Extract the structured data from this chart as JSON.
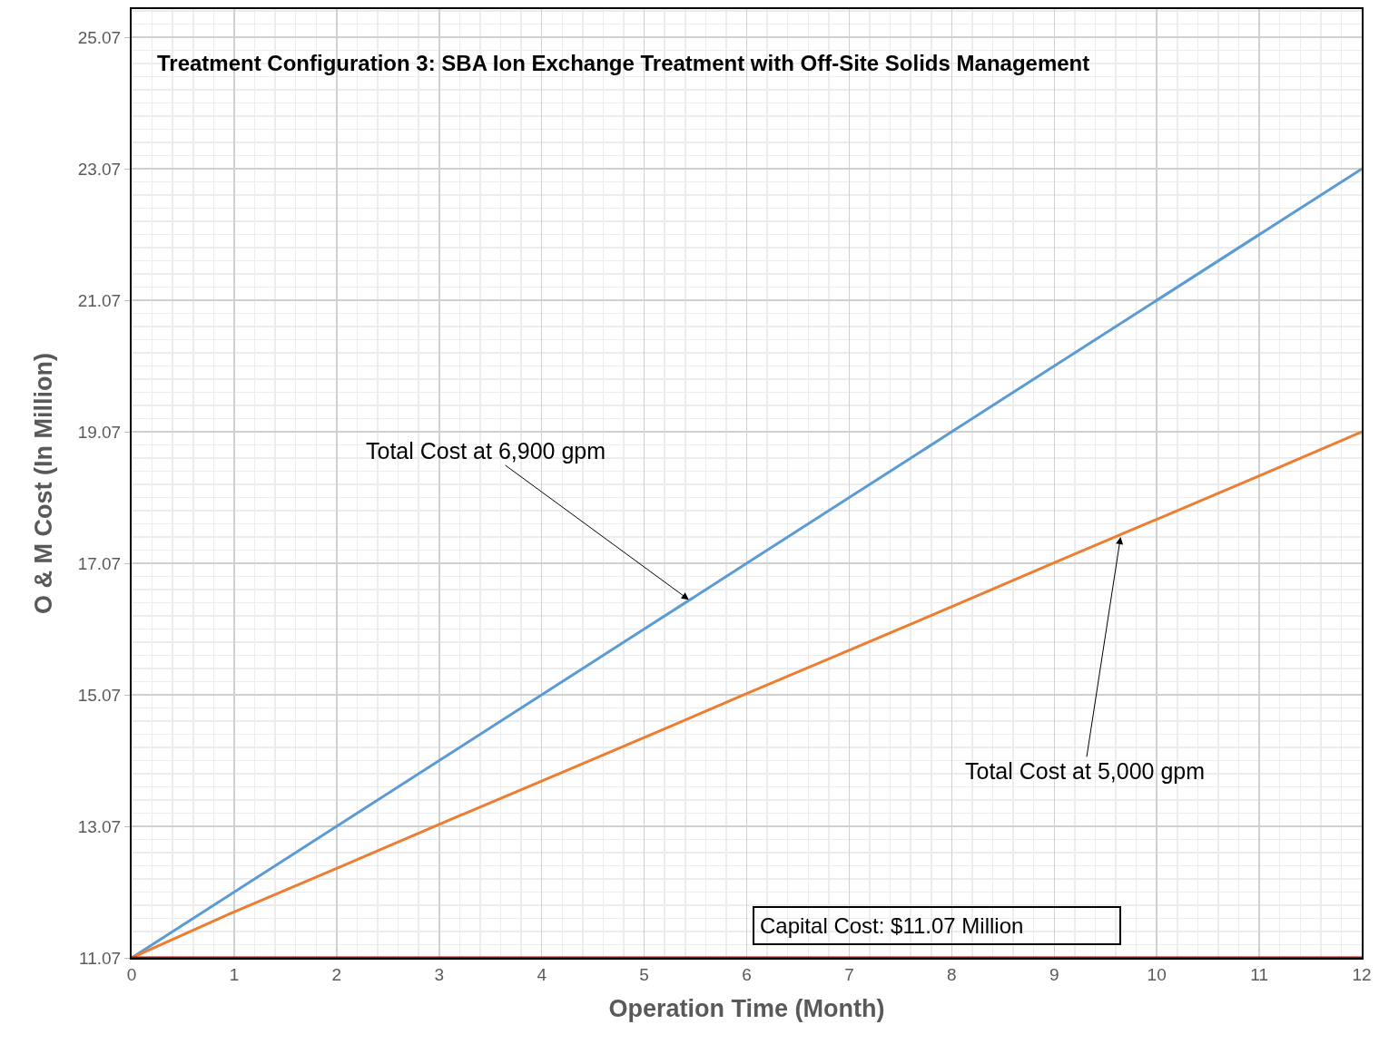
{
  "chart_data": {
    "type": "line",
    "title": "Treatment Configuration 3: SBA Ion Exchange Treatment with Off-Site Solids Management",
    "xlabel": "Operation Time (Month)",
    "ylabel": "O & M Cost (In Million)",
    "x": [
      0,
      1,
      2,
      3,
      4,
      5,
      6,
      7,
      8,
      9,
      10,
      11,
      12
    ],
    "series": [
      {
        "color": "#5b9bd5",
        "values": [
          11.07,
          12.07,
          13.07,
          14.07,
          15.07,
          16.07,
          17.07,
          18.07,
          19.07,
          20.07,
          21.07,
          22.07,
          23.07
        ]
      },
      {
        "color": "#ed7d31",
        "values": [
          11.07,
          11.77,
          12.43,
          13.1,
          13.76,
          14.42,
          15.09,
          15.75,
          16.41,
          17.08,
          17.74,
          18.4,
          19.07
        ]
      }
    ],
    "xlim": [
      0,
      12
    ],
    "xticks": [
      0,
      1,
      2,
      3,
      4,
      5,
      6,
      7,
      8,
      9,
      10,
      11,
      12
    ],
    "ylim": [
      11.07,
      25.5
    ],
    "yticks": [
      11.07,
      13.07,
      15.07,
      17.07,
      19.07,
      21.07,
      23.07,
      25.07
    ],
    "grid": true,
    "marker": "none",
    "line_style": "solid",
    "ref_lines": [
      {
        "axis": "y",
        "value": 11.07,
        "label": "Capital Cost: $11.07 Million",
        "color": "#c00000"
      }
    ],
    "annotations": [
      {
        "text": "Total Cost at 6,900 gpm",
        "x": 5.45,
        "y": 16.5
      },
      {
        "text": "Total Cost at 5,000 gpm",
        "x": 9.65,
        "y": 17.5
      }
    ]
  }
}
